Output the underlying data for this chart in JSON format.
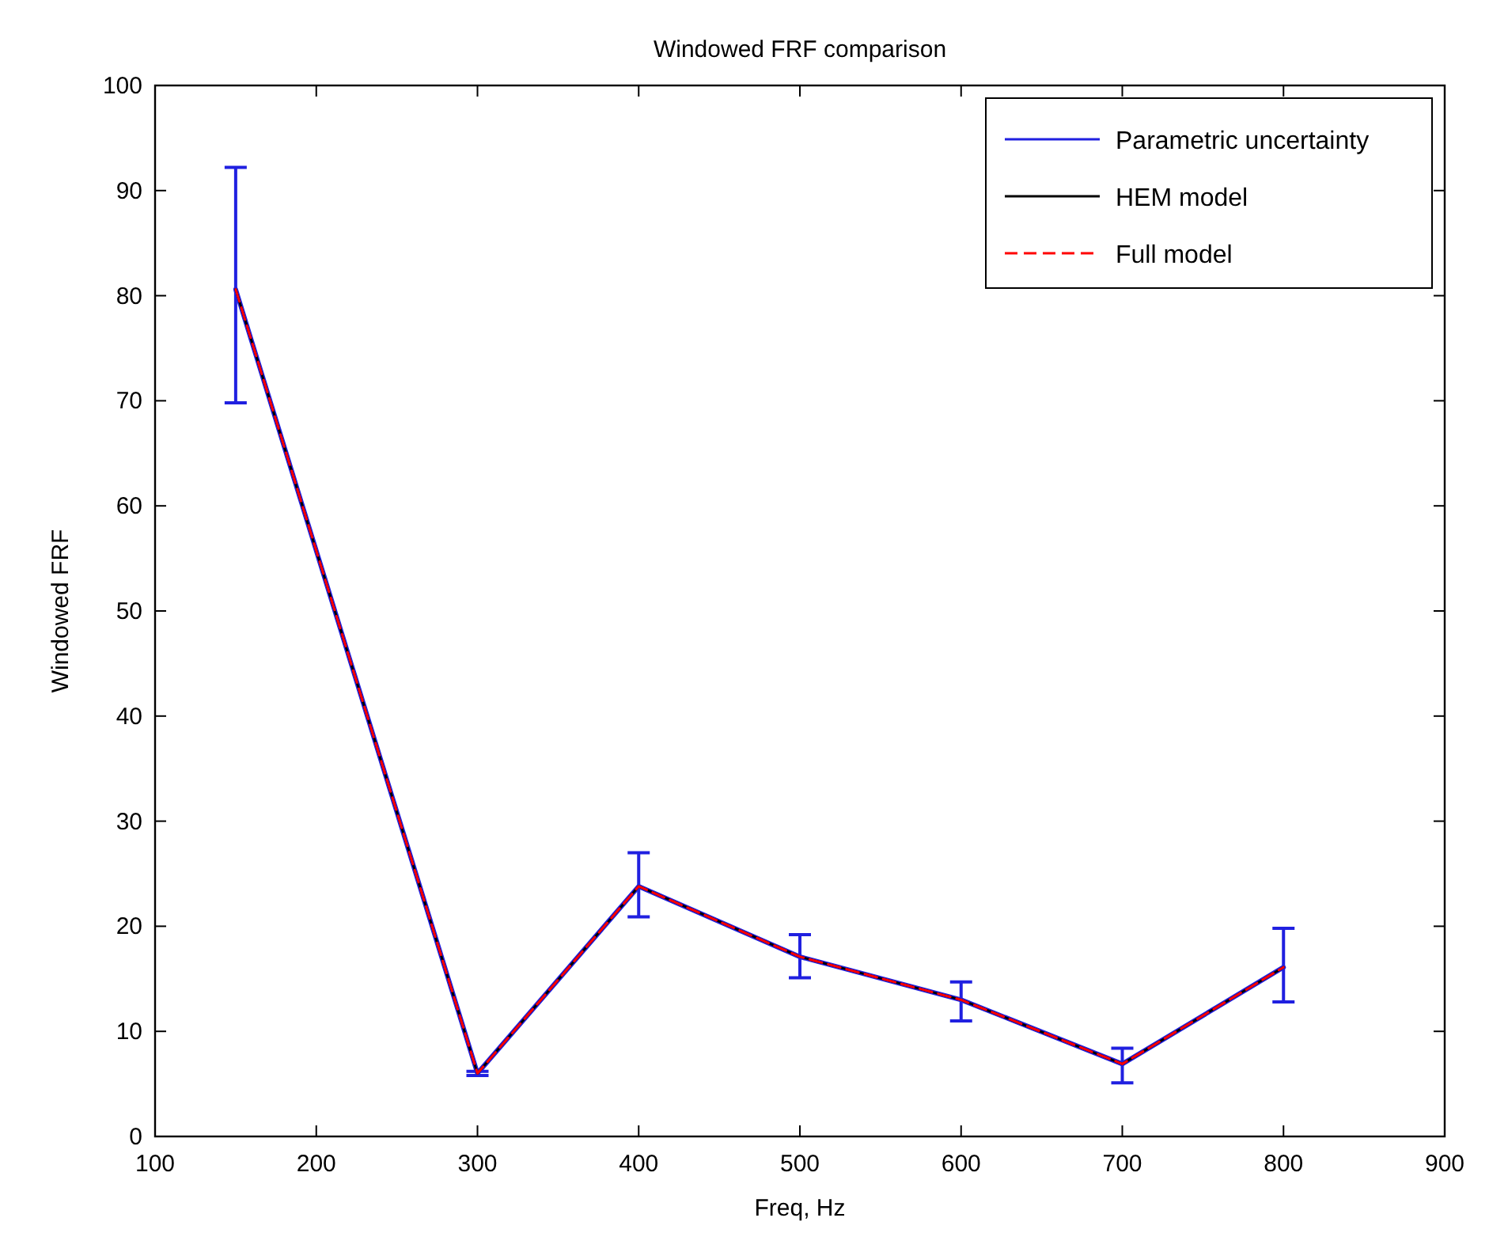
{
  "chart_data": {
    "type": "line",
    "title": "Windowed FRF comparison",
    "xlabel": "Freq, Hz",
    "ylabel": "Windowed FRF",
    "x": [
      150,
      300,
      400,
      500,
      600,
      700,
      800
    ],
    "xlim": [
      100,
      900
    ],
    "xticks": [
      100,
      200,
      300,
      400,
      500,
      600,
      700,
      800,
      900
    ],
    "ylim": [
      0,
      100
    ],
    "yticks": [
      0,
      10,
      20,
      30,
      40,
      50,
      60,
      70,
      80,
      90,
      100
    ],
    "grid": false,
    "legend": "top right",
    "series": [
      {
        "name": "Parametric uncertainty",
        "color": "#2020e0",
        "values": [
          80.6,
          6.0,
          23.8,
          17.1,
          13.0,
          6.9,
          16.1
        ],
        "errors": [
          [
            69.8,
            92.2
          ],
          [
            5.8,
            6.2
          ],
          [
            20.9,
            27.0
          ],
          [
            15.1,
            19.2
          ],
          [
            11.0,
            14.7
          ],
          [
            5.1,
            8.4
          ],
          [
            12.8,
            19.8
          ]
        ]
      },
      {
        "name": "HEM model",
        "line_style": "solid",
        "color": "#000000",
        "values": [
          80.6,
          6.0,
          23.8,
          17.1,
          13.0,
          6.9,
          16.1
        ]
      },
      {
        "name": "Full model",
        "line_style": "dashed",
        "color": "#ff0000",
        "values": [
          80.6,
          6.0,
          23.8,
          17.1,
          13.0,
          6.9,
          16.1
        ]
      }
    ]
  }
}
